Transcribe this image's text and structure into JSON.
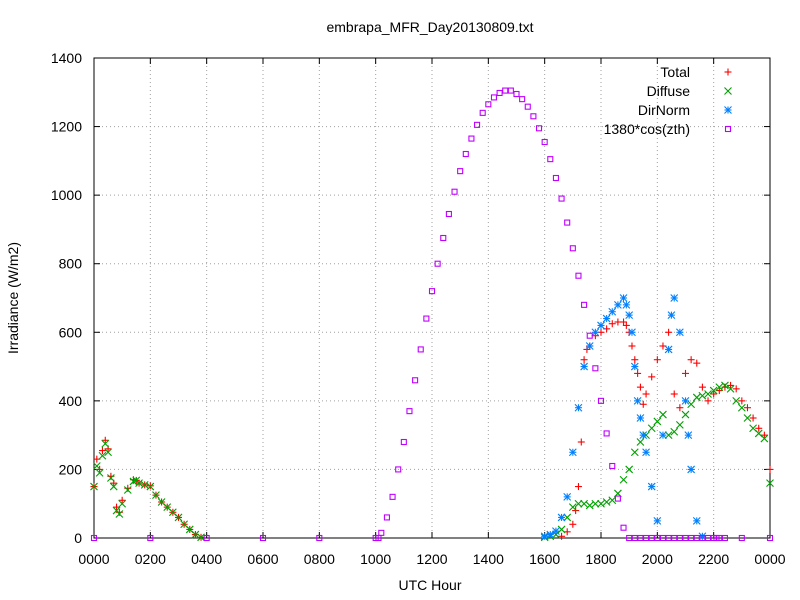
{
  "chart_data": {
    "type": "scatter",
    "title": "embrapa_MFR_Day20130809.txt",
    "xlabel": "UTC Hour",
    "ylabel": "Irradiance (W/m2)",
    "xlim": [
      0,
      24
    ],
    "ylim": [
      0,
      1400
    ],
    "xticks": [
      {
        "value": 0,
        "label": "0000"
      },
      {
        "value": 2,
        "label": "0200"
      },
      {
        "value": 4,
        "label": "0400"
      },
      {
        "value": 6,
        "label": "0600"
      },
      {
        "value": 8,
        "label": "0800"
      },
      {
        "value": 10,
        "label": "1000"
      },
      {
        "value": 12,
        "label": "1200"
      },
      {
        "value": 14,
        "label": "1400"
      },
      {
        "value": 16,
        "label": "1600"
      },
      {
        "value": 18,
        "label": "1800"
      },
      {
        "value": 20,
        "label": "2000"
      },
      {
        "value": 22,
        "label": "2200"
      },
      {
        "value": 24,
        "label": "0000"
      }
    ],
    "yticks": [
      {
        "value": 0,
        "label": "0"
      },
      {
        "value": 200,
        "label": "200"
      },
      {
        "value": 400,
        "label": "400"
      },
      {
        "value": 600,
        "label": "600"
      },
      {
        "value": 800,
        "label": "800"
      },
      {
        "value": 1000,
        "label": "1000"
      },
      {
        "value": 1200,
        "label": "1200"
      },
      {
        "value": 1400,
        "label": "1400"
      }
    ],
    "grid": true,
    "legend_position": "top-right",
    "series": [
      {
        "name": "Total",
        "marker": "plus",
        "color": "#ff0000",
        "x": [
          0.0,
          0.1,
          0.2,
          0.3,
          0.4,
          0.5,
          0.6,
          0.7,
          0.8,
          0.9,
          1.0,
          1.2,
          1.4,
          1.5,
          1.6,
          1.8,
          2.0,
          2.2,
          2.4,
          2.6,
          2.8,
          3.0,
          3.2,
          3.4,
          3.6,
          3.8,
          16.6,
          16.8,
          17.0,
          17.1,
          17.2,
          17.3,
          17.4,
          17.5,
          17.6,
          17.8,
          18.0,
          18.2,
          18.4,
          18.6,
          18.8,
          18.9,
          19.0,
          19.1,
          19.2,
          19.3,
          19.4,
          19.5,
          19.6,
          19.8,
          20.0,
          20.2,
          20.4,
          20.6,
          20.8,
          21.0,
          21.2,
          21.4,
          21.6,
          21.8,
          22.0,
          22.2,
          22.4,
          22.6,
          22.8,
          23.0,
          23.2,
          23.4,
          23.6,
          23.8,
          24.0
        ],
        "y": [
          150,
          230,
          200,
          255,
          285,
          260,
          180,
          160,
          90,
          75,
          110,
          145,
          170,
          168,
          160,
          155,
          152,
          125,
          105,
          90,
          75,
          60,
          40,
          25,
          10,
          2,
          5,
          18,
          40,
          80,
          150,
          280,
          520,
          550,
          560,
          590,
          600,
          610,
          625,
          630,
          630,
          620,
          600,
          560,
          520,
          480,
          440,
          390,
          420,
          470,
          520,
          560,
          600,
          420,
          380,
          480,
          520,
          510,
          440,
          400,
          420,
          430,
          440,
          445,
          435,
          400,
          380,
          350,
          320,
          300,
          200
        ]
      },
      {
        "name": "Diffuse",
        "marker": "cross",
        "color": "#00a000",
        "x": [
          0.0,
          0.1,
          0.2,
          0.3,
          0.4,
          0.5,
          0.6,
          0.7,
          0.8,
          0.9,
          1.0,
          1.2,
          1.4,
          1.5,
          1.6,
          1.8,
          2.0,
          2.2,
          2.4,
          2.6,
          2.8,
          3.0,
          3.2,
          3.4,
          3.6,
          3.8,
          16.0,
          16.2,
          16.4,
          16.6,
          16.8,
          17.0,
          17.2,
          17.4,
          17.6,
          17.8,
          18.0,
          18.2,
          18.4,
          18.6,
          18.8,
          19.0,
          19.2,
          19.4,
          19.6,
          19.8,
          20.0,
          20.2,
          20.4,
          20.6,
          20.8,
          21.0,
          21.2,
          21.4,
          21.6,
          21.8,
          22.0,
          22.2,
          22.4,
          22.6,
          22.8,
          23.0,
          23.2,
          23.4,
          23.6,
          23.8,
          24.0
        ],
        "y": [
          150,
          210,
          190,
          240,
          275,
          250,
          175,
          150,
          80,
          70,
          100,
          140,
          165,
          168,
          160,
          155,
          150,
          125,
          105,
          90,
          75,
          60,
          40,
          25,
          10,
          2,
          2,
          5,
          10,
          25,
          60,
          90,
          100,
          100,
          95,
          100,
          100,
          105,
          110,
          130,
          170,
          200,
          250,
          280,
          300,
          320,
          340,
          360,
          300,
          310,
          330,
          360,
          390,
          410,
          415,
          420,
          430,
          440,
          445,
          435,
          400,
          380,
          350,
          320,
          305,
          290,
          160
        ]
      },
      {
        "name": "DirNorm",
        "marker": "star",
        "color": "#0080ff",
        "x": [
          16.0,
          16.2,
          16.4,
          16.6,
          16.8,
          17.0,
          17.2,
          17.4,
          17.6,
          17.8,
          18.0,
          18.2,
          18.4,
          18.6,
          18.8,
          18.9,
          19.0,
          19.1,
          19.2,
          19.3,
          19.4,
          19.5,
          19.6,
          19.8,
          20.0,
          20.2,
          20.4,
          20.5,
          20.6,
          20.8,
          21.0,
          21.1,
          21.2,
          21.4,
          21.6
        ],
        "y": [
          5,
          10,
          20,
          60,
          120,
          250,
          380,
          500,
          560,
          600,
          620,
          640,
          660,
          680,
          700,
          680,
          650,
          600,
          500,
          400,
          350,
          300,
          250,
          150,
          50,
          300,
          550,
          650,
          700,
          600,
          400,
          300,
          200,
          50,
          5
        ]
      },
      {
        "name": "1380*cos(zth)",
        "marker": "square",
        "color": "#c000ff",
        "x": [
          0,
          2,
          4,
          6,
          8,
          10,
          10.1,
          10.2,
          10.4,
          10.6,
          10.8,
          11.0,
          11.2,
          11.4,
          11.6,
          11.8,
          12.0,
          12.2,
          12.4,
          12.6,
          12.8,
          13.0,
          13.2,
          13.4,
          13.6,
          13.8,
          14.0,
          14.2,
          14.4,
          14.6,
          14.8,
          15.0,
          15.2,
          15.4,
          15.6,
          15.8,
          16.0,
          16.2,
          16.4,
          16.6,
          16.8,
          17.0,
          17.2,
          17.4,
          17.6,
          17.8,
          18.0,
          18.2,
          18.4,
          18.6,
          18.8,
          19.0,
          19.2,
          19.4,
          19.6,
          19.8,
          20.0,
          20.2,
          20.4,
          20.6,
          20.8,
          21.0,
          21.2,
          21.4,
          21.6,
          21.8,
          22.0,
          22.1,
          22.2,
          22.4,
          23,
          24
        ],
        "y": [
          0,
          0,
          0,
          0,
          0,
          0,
          0,
          15,
          60,
          120,
          200,
          280,
          370,
          460,
          550,
          640,
          720,
          800,
          875,
          945,
          1010,
          1070,
          1120,
          1165,
          1205,
          1240,
          1265,
          1285,
          1298,
          1305,
          1305,
          1295,
          1280,
          1258,
          1230,
          1195,
          1155,
          1105,
          1050,
          990,
          920,
          845,
          765,
          680,
          590,
          495,
          400,
          305,
          210,
          115,
          30,
          0,
          0,
          0,
          0,
          0,
          0,
          0,
          0,
          0,
          0,
          0,
          0,
          0,
          0,
          0,
          0,
          0,
          0,
          0,
          0,
          0
        ]
      }
    ]
  }
}
